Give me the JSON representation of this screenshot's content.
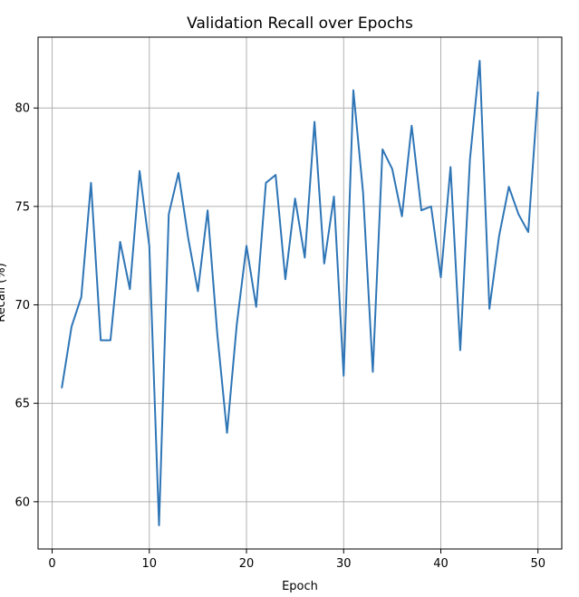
{
  "chart_data": {
    "type": "line",
    "title": "Validation Recall over Epochs",
    "xlabel": "Epoch",
    "ylabel": "Recall (%)",
    "xlim": [
      -1.45,
      52.45
    ],
    "ylim": [
      57.6,
      83.6
    ],
    "xticks": [
      0,
      10,
      20,
      30,
      40,
      50
    ],
    "yticks": [
      60,
      65,
      70,
      75,
      80
    ],
    "grid": true,
    "series": [
      {
        "color": "#2e75b6",
        "x": [
          1,
          2,
          3,
          4,
          5,
          6,
          7,
          8,
          9,
          10,
          11,
          12,
          13,
          14,
          15,
          16,
          17,
          18,
          19,
          20,
          21,
          22,
          23,
          24,
          25,
          26,
          27,
          28,
          29,
          30,
          31,
          32,
          33,
          34,
          35,
          36,
          37,
          38,
          39,
          40,
          41,
          42,
          43,
          44,
          45,
          46,
          47,
          48,
          49,
          50
        ],
        "values": [
          65.8,
          68.9,
          70.4,
          76.2,
          68.2,
          68.2,
          73.2,
          70.8,
          76.8,
          73.0,
          58.8,
          74.6,
          76.7,
          73.4,
          70.7,
          74.8,
          68.5,
          63.5,
          69.0,
          73.0,
          69.9,
          76.2,
          76.6,
          71.3,
          75.4,
          72.4,
          79.3,
          72.1,
          75.5,
          66.4,
          80.9,
          75.7,
          66.6,
          77.9,
          76.9,
          74.5,
          79.1,
          74.8,
          75.0,
          71.4,
          77.0,
          67.7,
          77.4,
          82.4,
          69.8,
          73.5,
          76.0,
          74.6,
          73.7,
          80.8
        ]
      }
    ]
  }
}
